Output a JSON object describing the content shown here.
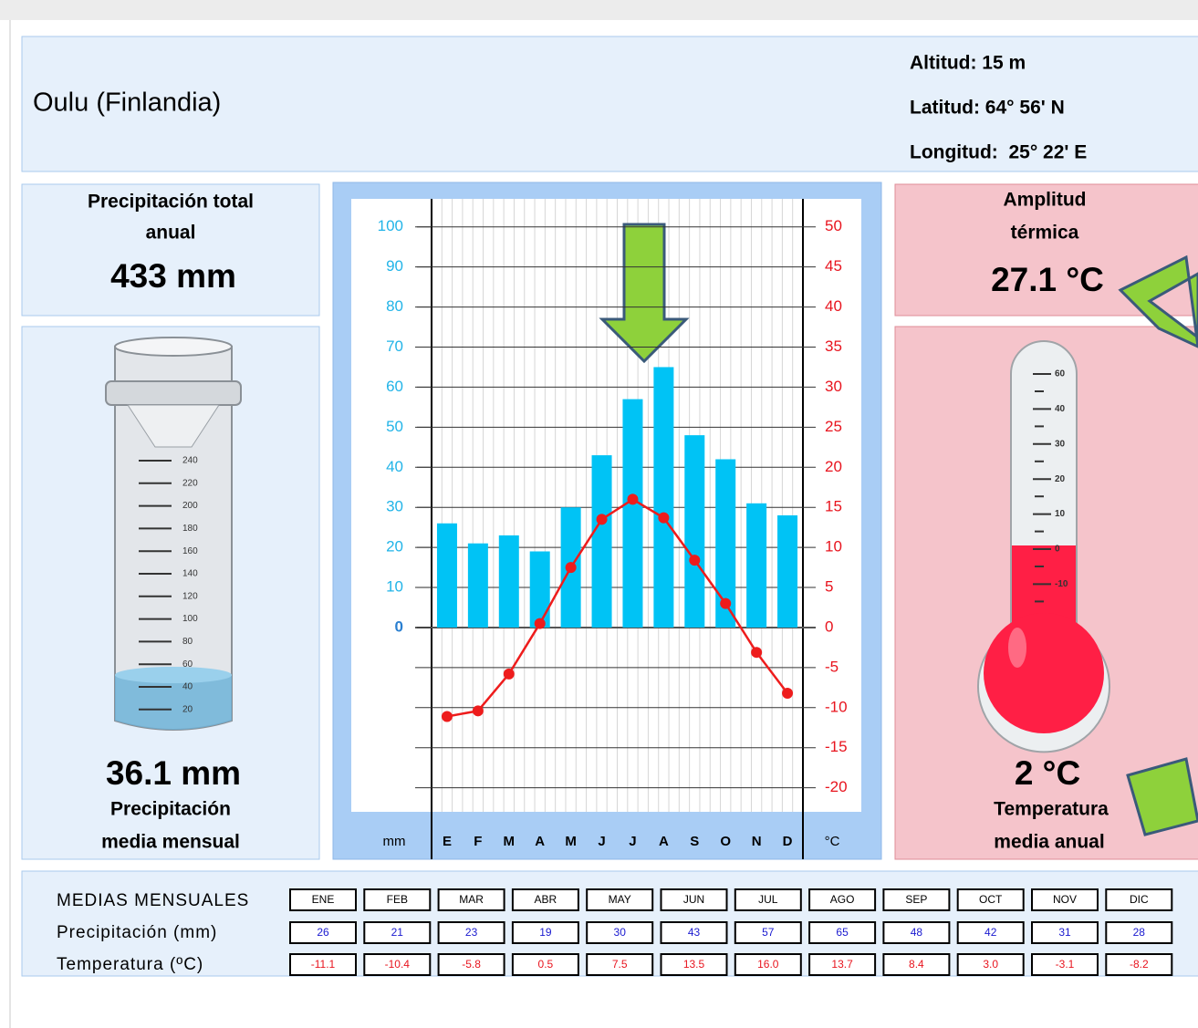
{
  "header": {
    "title": "Oulu (Finlandia)",
    "altitude": "Altitud: 15 m",
    "latitude": "Latitud: 64° 56' N",
    "longitude": "Longitud:  25° 22' E"
  },
  "precipitation_panel": {
    "label": [
      "Precipitación total",
      "anual"
    ],
    "total": "433 mm",
    "monthly_mean": "36.1 mm",
    "monthly_mean_label": [
      "Precipitación",
      "media mensual"
    ],
    "gauge_ticks": [
      240,
      220,
      200,
      180,
      160,
      140,
      120,
      100,
      80,
      60,
      40,
      20
    ]
  },
  "temperature_panel": {
    "label": [
      "Amplitud",
      "térmica"
    ],
    "amplitude": "27.1 °C",
    "annual_mean": "2 °C",
    "annual_mean_label": [
      "Temperatura",
      "media anual"
    ],
    "thermometer_ticks": [
      60,
      40,
      30,
      20,
      10,
      0,
      -10
    ]
  },
  "chart_data": {
    "type": "bar",
    "categories": [
      "E",
      "F",
      "M",
      "A",
      "M",
      "J",
      "J",
      "A",
      "S",
      "O",
      "N",
      "D"
    ],
    "series": [
      {
        "name": "Precipitación (mm)",
        "type": "bar",
        "color": "#00c3f5",
        "values": [
          26,
          21,
          23,
          19,
          30,
          43,
          57,
          65,
          48,
          42,
          31,
          28
        ]
      },
      {
        "name": "Temperatura (ºC)",
        "type": "line",
        "axis": "y2",
        "color": "#ee1c1c",
        "values": [
          -11.1,
          -10.4,
          -5.8,
          0.5,
          7.5,
          13.5,
          16.0,
          13.7,
          8.4,
          3.0,
          -3.1,
          -8.2
        ],
        "value_labels": [
          "-11.1",
          "-10.4",
          "-5.8",
          "0.5",
          "7.5",
          "13.5",
          "16.0",
          "13.7",
          "8.4",
          "3.0",
          "-3.1",
          "-8.2"
        ]
      }
    ],
    "ylim": [
      -46,
      107
    ],
    "yticks": [
      0,
      10,
      20,
      30,
      40,
      50,
      60,
      70,
      80,
      90,
      100
    ],
    "y2lim": [
      -23,
      53.5
    ],
    "y2ticks": [
      -20,
      -15,
      -10,
      -5,
      0,
      5,
      10,
      15,
      20,
      25,
      30,
      35,
      40,
      45,
      50
    ],
    "y_label": "mm",
    "y2_label": "°C",
    "grid": true
  },
  "table": {
    "title": "MEDIAS MENSUALES",
    "months": [
      "ENE",
      "FEB",
      "MAR",
      "ABR",
      "MAY",
      "JUN",
      "JUL",
      "AGO",
      "SEP",
      "OCT",
      "NOV",
      "DIC"
    ]
  }
}
